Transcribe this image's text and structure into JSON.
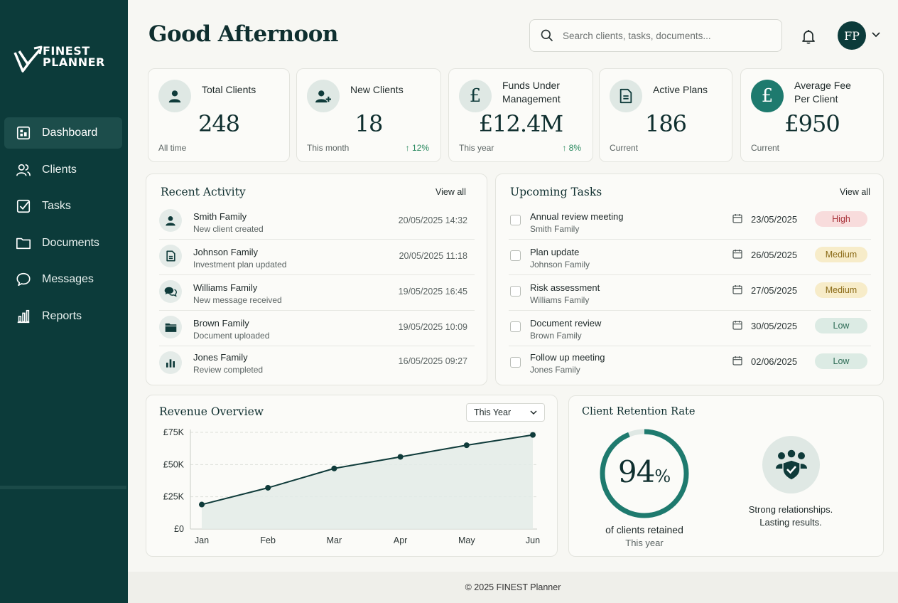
{
  "app": {
    "logo_line1": "FINEST",
    "logo_line2": "PLANNER"
  },
  "sidebar": {
    "items": [
      {
        "label": "Dashboard",
        "icon": "dashboard-icon",
        "active": true
      },
      {
        "label": "Clients",
        "icon": "users-icon"
      },
      {
        "label": "Tasks",
        "icon": "checkbox-icon"
      },
      {
        "label": "Documents",
        "icon": "folder-icon"
      },
      {
        "label": "Messages",
        "icon": "chat-icon"
      },
      {
        "label": "Reports",
        "icon": "bar-chart-icon"
      }
    ]
  },
  "header": {
    "greeting": "Good Afternoon",
    "search_placeholder": "Search clients, tasks, documents...",
    "avatar_initials": "FP"
  },
  "stats": [
    {
      "label": "Total Clients",
      "value": "248",
      "sub": "All time",
      "delta": "",
      "icon": "user-icon"
    },
    {
      "label": "New Clients",
      "value": "18",
      "sub": "This month",
      "delta": "↑ 12%",
      "icon": "user-plus-icon"
    },
    {
      "label": "Funds Under Management",
      "value": "£12.4M",
      "sub": "This year",
      "delta": "↑ 8%",
      "icon": "pound-icon"
    },
    {
      "label": "Active Plans",
      "value": "186",
      "sub": "Current",
      "delta": "",
      "icon": "document-icon"
    },
    {
      "label": "Average Fee Per Client",
      "value": "£950",
      "sub": "Current",
      "delta": "",
      "icon": "pound-icon"
    }
  ],
  "recent_activity": {
    "title": "Recent Activity",
    "view_all": "View all",
    "items": [
      {
        "title": "Smith Family",
        "sub": "New client created",
        "time": "20/05/2025 14:32",
        "icon": "user-icon"
      },
      {
        "title": "Johnson Family",
        "sub": "Investment plan updated",
        "time": "20/05/2025 11:18",
        "icon": "document-icon"
      },
      {
        "title": "Williams Family",
        "sub": "New message received",
        "time": "19/05/2025 16:45",
        "icon": "chat-icon"
      },
      {
        "title": "Brown Family",
        "sub": "Document uploaded",
        "time": "19/05/2025 10:09",
        "icon": "folder-icon"
      },
      {
        "title": "Jones Family",
        "sub": "Review completed",
        "time": "16/05/2025 09:27",
        "icon": "bar-chart-icon"
      }
    ]
  },
  "upcoming_tasks": {
    "title": "Upcoming Tasks",
    "view_all": "View all",
    "items": [
      {
        "title": "Annual review meeting",
        "sub": "Smith Family",
        "date": "23/05/2025",
        "priority": "High",
        "bg": "#f8dcdc",
        "fg": "#a8333a"
      },
      {
        "title": "Plan update",
        "sub": "Johnson Family",
        "date": "26/05/2025",
        "priority": "Medium",
        "bg": "#f7ecc9",
        "fg": "#8a6a16"
      },
      {
        "title": "Risk assessment",
        "sub": "Williams Family",
        "date": "27/05/2025",
        "priority": "Medium",
        "bg": "#f7ecc9",
        "fg": "#8a6a16"
      },
      {
        "title": "Document review",
        "sub": "Brown Family",
        "date": "30/05/2025",
        "priority": "Low",
        "bg": "#dcebe4",
        "fg": "#2d6b55"
      },
      {
        "title": "Follow up meeting",
        "sub": "Jones Family",
        "date": "02/06/2025",
        "priority": "Low",
        "bg": "#dcebe4",
        "fg": "#2d6b55"
      }
    ]
  },
  "revenue": {
    "title": "Revenue Overview",
    "period": "This Year"
  },
  "chart_data": {
    "type": "area",
    "title": "Revenue Overview",
    "categories": [
      "Jan",
      "Feb",
      "Mar",
      "Apr",
      "May",
      "Jun"
    ],
    "values": [
      19000,
      32000,
      47000,
      56000,
      65000,
      73000
    ],
    "ylim": [
      0,
      75000
    ],
    "yticks": [
      0,
      25000,
      50000,
      75000
    ],
    "ytick_labels": [
      "£0",
      "£25K",
      "£50K",
      "£75K"
    ],
    "grid": true,
    "line_color": "#0f3b3a",
    "fill_color": "#e3ebe8"
  },
  "retention": {
    "title": "Client Retention Rate",
    "value": 94,
    "value_text": "94",
    "unit": "%",
    "caption": "of clients retained",
    "period": "This year",
    "tagline1": "Strong relationships.",
    "tagline2": "Lasting results.",
    "ring_color": "#1e7a6e",
    "track_color": "#dfe8e4"
  },
  "footer": {
    "text": "© 2025 FINEST Planner"
  },
  "colors": {
    "sidebar_bg": "#0c3b3a",
    "accent": "#1e7a6e"
  }
}
